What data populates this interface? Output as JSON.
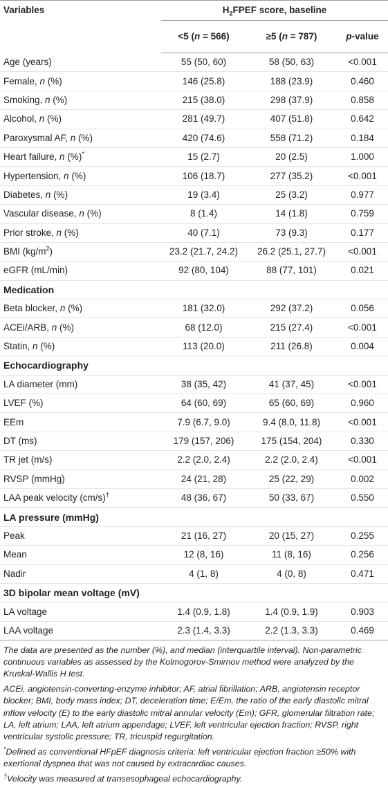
{
  "header": {
    "variables": "Variables",
    "score_prefix": "H",
    "score_sub": "2",
    "score_rest": "FPEF score, baseline",
    "grp1_prefix": "<5 (",
    "grp1_n": "n",
    "grp1_suffix": " = 566)",
    "grp2_prefix": "≥5 (",
    "grp2_n": "n",
    "grp2_suffix": " = 787)",
    "pvalue_p": "p",
    "pvalue_rest": "-value"
  },
  "rows": [
    {
      "pre": "Age (years)",
      "a": "55 (50, 60)",
      "b": "58 (50, 63)",
      "p": "<0.001"
    },
    {
      "pre": "Female, ",
      "it": "n",
      "post": " (%)",
      "a": "146 (25.8)",
      "b": "188 (23.9)",
      "p": "0.460"
    },
    {
      "pre": "Smoking, ",
      "it": "n",
      "post": " (%)",
      "a": "215 (38.0)",
      "b": "298 (37.9)",
      "p": "0.858"
    },
    {
      "pre": "Alcohol, ",
      "it": "n",
      "post": " (%)",
      "a": "281 (49.7)",
      "b": "407 (51.8)",
      "p": "0.642"
    },
    {
      "pre": "Paroxysmal AF, ",
      "it": "n",
      "post": " (%)",
      "a": "420 (74.6)",
      "b": "558 (71.2)",
      "p": "0.184"
    },
    {
      "pre": "Heart failure, ",
      "it": "n",
      "post": " (%)",
      "sup": "*",
      "a": "15 (2.7)",
      "b": "20 (2.5)",
      "p": "1.000"
    },
    {
      "pre": "Hypertension, ",
      "it": "n",
      "post": " (%)",
      "a": "106 (18.7)",
      "b": "277 (35.2)",
      "p": "<0.001"
    },
    {
      "pre": "Diabetes, ",
      "it": "n",
      "post": " (%)",
      "a": "19 (3.4)",
      "b": "25 (3.2)",
      "p": "0.977"
    },
    {
      "pre": "Vascular disease, ",
      "it": "n",
      "post": " (%)",
      "a": "8 (1.4)",
      "b": "14 (1.8)",
      "p": "0.759"
    },
    {
      "pre": "Prior stroke, ",
      "it": "n",
      "post": " (%)",
      "a": "40 (7.1)",
      "b": "73 (9.3)",
      "p": "0.177"
    },
    {
      "pre": "BMI (kg/m",
      "sup": "2",
      "post2": ")",
      "a": "23.2 (21.7, 24.2)",
      "b": "26.2 (25.1, 27.7)",
      "p": "<0.001"
    },
    {
      "pre": "eGFR (mL/min)",
      "a": "92 (80, 104)",
      "b": "88 (77, 101)",
      "p": "0.021"
    },
    {
      "section": "Medication"
    },
    {
      "pre": "Beta blocker, ",
      "it": "n",
      "post": " (%)",
      "a": "181 (32.0)",
      "b": "292 (37.2)",
      "p": "0.056"
    },
    {
      "pre": "ACEi/ARB, ",
      "it": "n",
      "post": " (%)",
      "a": "68 (12.0)",
      "b": "215 (27.4)",
      "p": "<0.001"
    },
    {
      "pre": "Statin, ",
      "it": "n",
      "post": " (%)",
      "a": "113 (20.0)",
      "b": "211 (26.8)",
      "p": "0.004"
    },
    {
      "section": "Echocardiography"
    },
    {
      "pre": "LA diameter (mm)",
      "a": "38 (35, 42)",
      "b": "41 (37, 45)",
      "p": "<0.001"
    },
    {
      "pre": "LVEF (%)",
      "a": "64 (60, 69)",
      "b": "65 (60, 69)",
      "p": "0.960"
    },
    {
      "pre": "EEm",
      "a": "7.9 (6.7, 9.0)",
      "b": "9.4 (8.0, 11.8)",
      "p": "<0.001"
    },
    {
      "pre": "DT (ms)",
      "a": "179 (157, 206)",
      "b": "175 (154, 204)",
      "p": "0.330"
    },
    {
      "pre": "TR jet (m/s)",
      "a": "2.2 (2.0, 2.4)",
      "b": "2.2 (2.0, 2.4)",
      "p": "<0.001"
    },
    {
      "pre": "RVSP (mmHg)",
      "a": "24 (21, 28)",
      "b": "25 (22, 29)",
      "p": "0.002"
    },
    {
      "pre": "LAA peak velocity (cm/s)",
      "sup": "†",
      "a": "48 (36, 67)",
      "b": "50 (33, 67)",
      "p": "0.550"
    },
    {
      "section": "LA pressure (mmHg)"
    },
    {
      "pre": "Peak",
      "a": "21 (16, 27)",
      "b": "20 (15, 27)",
      "p": "0.255"
    },
    {
      "pre": "Mean",
      "a": "12 (8, 16)",
      "b": "11 (8, 16)",
      "p": "0.256"
    },
    {
      "pre": "Nadir",
      "a": "4 (1, 8)",
      "b": "4 (0, 8)",
      "p": "0.471"
    },
    {
      "section": "3D bipolar mean voltage (mV)"
    },
    {
      "pre": "LA voltage",
      "a": "1.4 (0.9, 1.8)",
      "b": "1.4 (0.9, 1.9)",
      "p": "0.903"
    },
    {
      "pre": "LAA voltage",
      "a": "2.3 (1.4, 3.3)",
      "b": "2.2 (1.3, 3.3)",
      "p": "0.469"
    }
  ],
  "notes": {
    "data_presented": "The data are presented as the number (%), and median (interquartile interval). Non-parametric continuous variables as assessed by the Kolmogorov-Smirnov method were analyzed by the Kruskal-Wallis H test.",
    "abbreviations": "ACEi, angiotensin-converting-enzyme inhibitor; AF, atrial fibrillation; ARB, angiotensin receptor blocker; BMI, body mass index; DT, deceleration time; E/Em, the ratio of the early diastolic mitral inflow velocity (E) to the early diastolic mitral annular velocity (Em); GFR, glomerular filtration rate; LA, left atrium; LAA, left atrium appendage; LVEF, left ventricular ejection fraction; RVSP, right ventricular systolic pressure; TR, tricuspid regurgitation.",
    "star_mark": "*",
    "star_text": "Defined as conventional HFpEF diagnosis criteria: left ventricular ejection fraction ≥50% with exertional dyspnea that was not caused by extracardiac causes.",
    "dagger_mark": "†",
    "dagger_text": "Velocity was measured at transesophageal echocardiography."
  }
}
